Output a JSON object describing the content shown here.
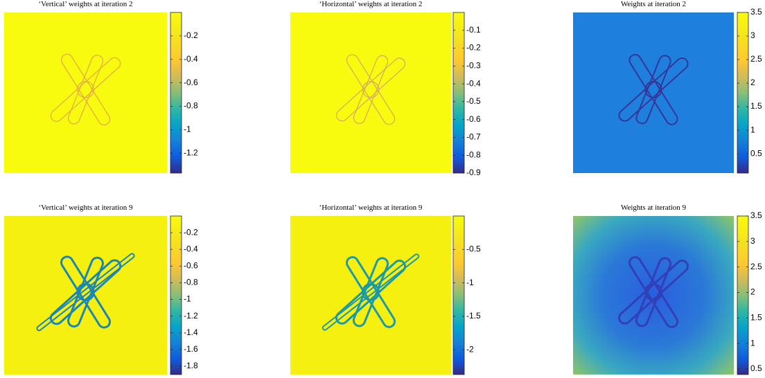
{
  "chart_data": [
    {
      "type": "heatmap",
      "title": "‘Vertical’ weights at iteration 2",
      "colormap": "parula",
      "clim": [
        -1.37,
        0
      ],
      "cticks": [
        -0.2,
        -0.4,
        -0.6,
        -0.8,
        -1,
        -1.2
      ]
    },
    {
      "type": "heatmap",
      "title": "‘Horizontal’ weights at iteration 2",
      "colormap": "parula",
      "clim": [
        -0.9,
        0
      ],
      "cticks": [
        -0.1,
        -0.2,
        -0.3,
        -0.4,
        -0.5,
        -0.6,
        -0.7,
        -0.8,
        -0.9
      ]
    },
    {
      "type": "heatmap",
      "title": "Weights at iteration 2",
      "colormap": "parula",
      "clim": [
        0.09,
        3.5
      ],
      "cticks": [
        3.5,
        3,
        2.5,
        2,
        1.5,
        1,
        0.5
      ]
    },
    {
      "type": "heatmap",
      "title": "‘Vertical’ weights at iteration 9",
      "colormap": "parula",
      "clim": [
        -1.9,
        0
      ],
      "cticks": [
        -0.2,
        -0.4,
        -0.6,
        -0.8,
        -1,
        -1.2,
        -1.4,
        -1.6,
        -1.8
      ]
    },
    {
      "type": "heatmap",
      "title": "‘Horizontal’ weights at iteration 9",
      "colormap": "parula",
      "clim": [
        -2.37,
        0
      ],
      "cticks": [
        -0.5,
        -1,
        -1.5,
        -2
      ]
    },
    {
      "type": "heatmap",
      "title": "Weights at iteration 9",
      "colormap": "parula",
      "clim": [
        0.39,
        3.5
      ],
      "cticks": [
        3.5,
        3,
        2.5,
        2,
        1.5,
        1,
        0.5
      ]
    }
  ]
}
